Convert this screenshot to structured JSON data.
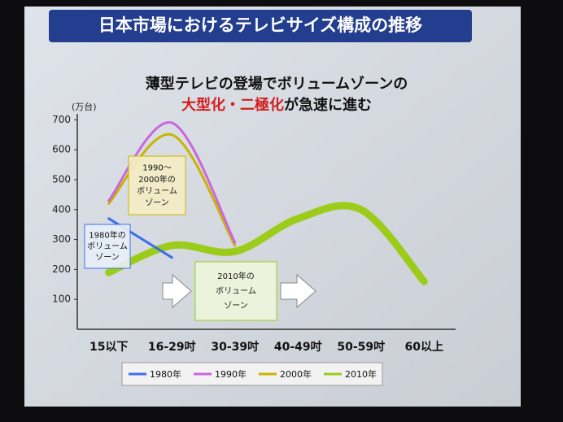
{
  "chart_data": {
    "type": "line",
    "title": "日本市場におけるテレビサイズ構成の推移",
    "subtitle": "薄型テレビの登場でボリュームゾーンの",
    "subtitle2_red": "大型化・二極化",
    "subtitle2_rest": "が急速に進む",
    "y_label": "(万台)",
    "categories": [
      "15以下",
      "16-29吋",
      "30-39吋",
      "40-49吋",
      "50-59吋",
      "60以上"
    ],
    "series": [
      {
        "name": "1980年",
        "color": "#3a6ee8",
        "values": [
          370,
          240,
          null,
          null,
          null,
          null
        ]
      },
      {
        "name": "1990年",
        "color": "#cc66dd",
        "values": [
          430,
          690,
          290,
          null,
          null,
          null
        ]
      },
      {
        "name": "2000年",
        "color": "#c8b400",
        "values": [
          420,
          650,
          280,
          null,
          null,
          null
        ]
      },
      {
        "name": "2010年",
        "color": "#9ccc1a",
        "values": [
          190,
          280,
          260,
          370,
          400,
          160
        ]
      }
    ],
    "ylim": [
      0,
      720
    ],
    "yticks": [
      100,
      200,
      300,
      400,
      500,
      600,
      700
    ],
    "legend": "bottom",
    "annotations": [
      {
        "lines": [
          "1990～",
          "2000年の",
          "ボリューム",
          "ゾーン"
        ]
      },
      {
        "lines": [
          "1980年の",
          "ボリューム",
          "ゾーン"
        ]
      },
      {
        "lines": [
          "2010年の",
          "ボリューム",
          "ゾーン"
        ]
      }
    ]
  }
}
